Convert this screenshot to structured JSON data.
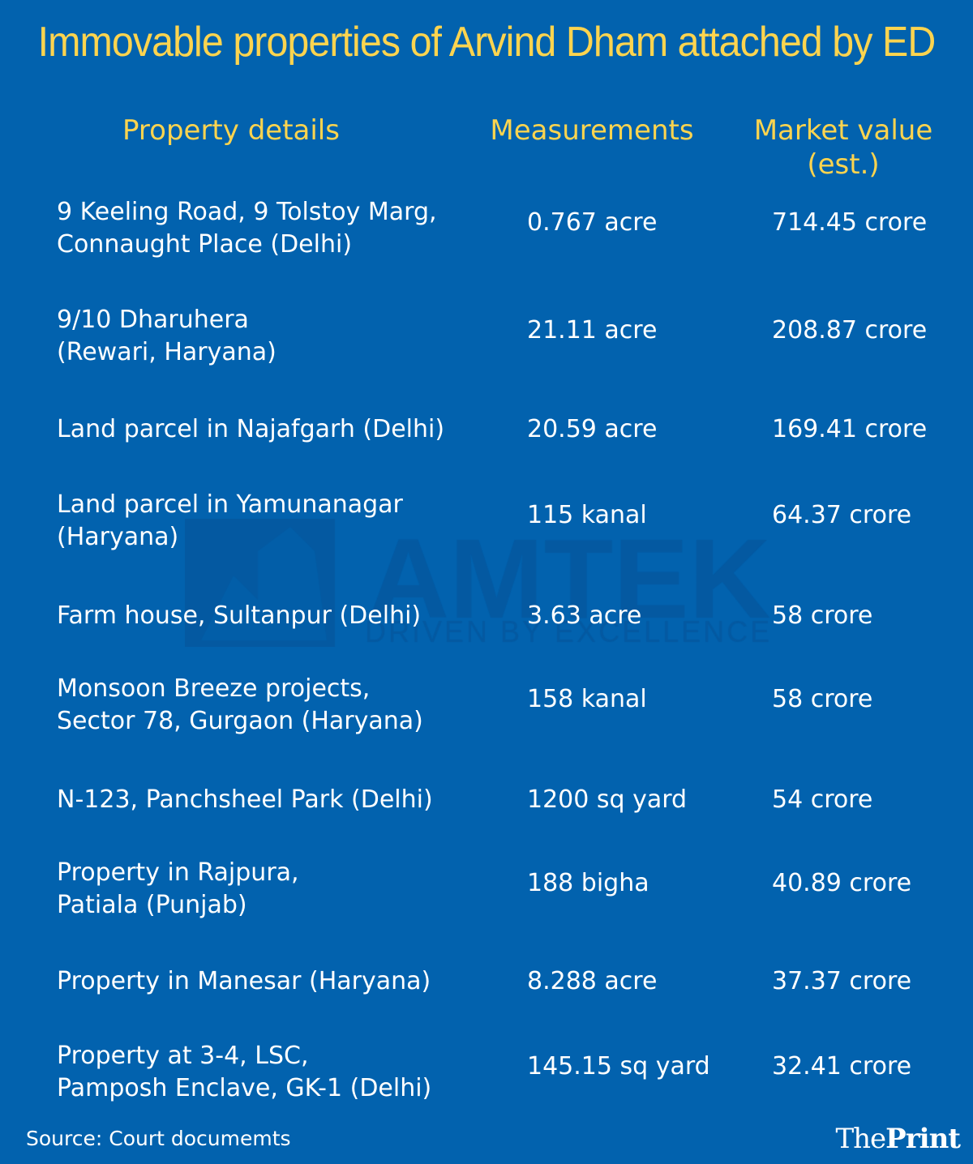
{
  "title": "Immovable properties of Arvind Dham attached by ED",
  "colors": {
    "background": "#0262ae",
    "heading": "#fdd44f",
    "text": "#ffffff",
    "watermark": "#0459a1"
  },
  "watermark": {
    "text": "AMTEK",
    "tagline": "DRIVEN BY EXCELLENCE"
  },
  "chart_data": {
    "type": "table",
    "columns": [
      "Property details",
      "Measurements",
      "Market value (est.)"
    ],
    "rows": [
      [
        "9 Keeling Road, 9 Tolstoy Marg,\nConnaught Place (Delhi)",
        "0.767 acre",
        "714.45 crore"
      ],
      [
        "9/10 Dharuhera\n(Rewari, Haryana)",
        "21.11 acre",
        "208.87 crore"
      ],
      [
        "Land parcel in Najafgarh (Delhi)",
        "20.59 acre",
        "169.41 crore"
      ],
      [
        "Land parcel in Yamunanagar\n(Haryana)",
        "115 kanal",
        "64.37 crore"
      ],
      [
        "Farm house, Sultanpur (Delhi)",
        "3.63 acre",
        "58 crore"
      ],
      [
        "Monsoon Breeze projects,\nSector 78, Gurgaon (Haryana)",
        "158 kanal",
        "58 crore"
      ],
      [
        "N-123, Panchsheel Park (Delhi)",
        "1200 sq yard",
        "54 crore"
      ],
      [
        "Property in Rajpura,\nPatiala (Punjab)",
        "188 bigha",
        "40.89 crore"
      ],
      [
        "Property in Manesar (Haryana)",
        "8.288 acre",
        "37.37 crore"
      ],
      [
        "Property at 3-4, LSC,\nPamposh Enclave, GK-1 (Delhi)",
        "145.15 sq yard",
        "32.41 crore"
      ]
    ]
  },
  "header": {
    "col1": "Property details",
    "col2": "Measurements",
    "col3_line1": "Market value",
    "col3_line2": "(est.)"
  },
  "footer": {
    "source": "Source: Court documemts",
    "logo_the": "The",
    "logo_print": "Print"
  }
}
